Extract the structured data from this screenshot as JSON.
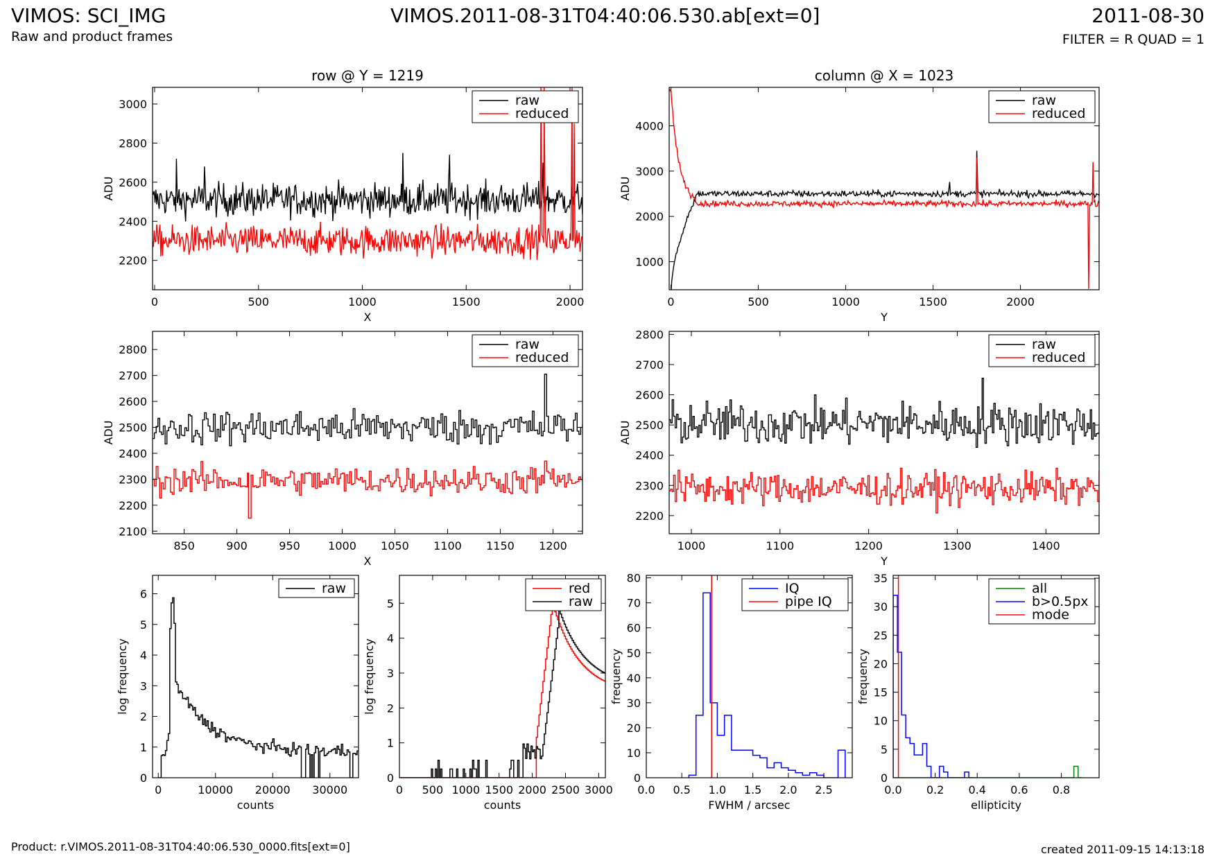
{
  "header": {
    "left_title": "VIMOS: SCI_IMG",
    "left_subtitle": "Raw and product frames",
    "center_title": "VIMOS.2011-08-31T04:40:06.530.ab[ext=0]",
    "right_title": "2011-08-30",
    "right_subtitle": "FILTER = R QUAD = 1"
  },
  "footer": {
    "product": "Product: r.VIMOS.2011-08-31T04:40:06.530_0000.fits[ext=0]",
    "created": "created 2011-09-15 14:13:18"
  },
  "colors": {
    "raw": "#000000",
    "reduced": "#ff0000",
    "iq": "#0000ff",
    "all": "#008000"
  },
  "chart_data": [
    {
      "id": "row-full",
      "type": "line",
      "title": "row @ Y = 1219",
      "xlabel": "X",
      "ylabel": "ADU",
      "xlim": [
        -10,
        2060
      ],
      "ylim": [
        2050,
        3085
      ],
      "xticks": [
        0,
        500,
        1000,
        1500,
        2000
      ],
      "yticks": [
        2200,
        2400,
        2600,
        2800,
        3000
      ],
      "legend": [
        "raw",
        "reduced"
      ],
      "legend_loc": "top-right",
      "series": [
        {
          "name": "raw",
          "color": "#000000",
          "level": 2510,
          "noise": 70,
          "n": 520,
          "spikes": [
            [
              105,
              2720
            ],
            [
              240,
              2680
            ],
            [
              1195,
              2750
            ],
            [
              1420,
              2740
            ],
            [
              1870,
              2700
            ]
          ]
        },
        {
          "name": "reduced",
          "color": "#ff0000",
          "level": 2300,
          "noise": 65,
          "n": 520,
          "spikes": [
            [
              1860,
              3085
            ],
            [
              1875,
              3085
            ],
            [
              2010,
              3085
            ],
            [
              2020,
              2900
            ]
          ]
        }
      ]
    },
    {
      "id": "col-full",
      "type": "line",
      "title": "column @ X = 1023",
      "xlabel": "Y",
      "ylabel": "ADU",
      "xlim": [
        -10,
        2450
      ],
      "ylim": [
        380,
        4850
      ],
      "xticks": [
        0,
        500,
        1000,
        1500,
        2000
      ],
      "yticks": [
        1000,
        2000,
        3000,
        4000
      ],
      "legend": [
        "raw",
        "reduced"
      ],
      "legend_loc": "top-right",
      "series": [
        {
          "name": "raw",
          "color": "#000000",
          "level": 2500,
          "noise": 60,
          "n": 500,
          "startup": "rise",
          "spikes": [
            [
              1595,
              2760
            ],
            [
              1750,
              3450
            ]
          ]
        },
        {
          "name": "reduced",
          "color": "#ff0000",
          "level": 2280,
          "noise": 55,
          "n": 500,
          "startup": "decay",
          "spikes": [
            [
              1750,
              3300
            ],
            [
              2390,
              400
            ],
            [
              2415,
              3200
            ]
          ]
        }
      ]
    },
    {
      "id": "row-zoom",
      "type": "line",
      "title": "",
      "xlabel": "X",
      "ylabel": "ADU",
      "xlim": [
        820,
        1228
      ],
      "ylim": [
        2090,
        2870
      ],
      "xticks": [
        850,
        900,
        950,
        1000,
        1050,
        1100,
        1150,
        1200
      ],
      "yticks": [
        2100,
        2200,
        2300,
        2400,
        2500,
        2600,
        2700,
        2800
      ],
      "legend": [
        "raw",
        "reduced"
      ],
      "legend_loc": "top-right",
      "series": [
        {
          "name": "raw",
          "color": "#000000",
          "level": 2500,
          "noise": 55,
          "n": 240,
          "spikes": [
            [
              1192,
              2705
            ]
          ]
        },
        {
          "name": "reduced",
          "color": "#ff0000",
          "level": 2295,
          "noise": 45,
          "n": 240,
          "spikes": [
            [
              911,
              2150
            ],
            [
              1192,
              2370
            ]
          ]
        }
      ]
    },
    {
      "id": "col-zoom",
      "type": "line",
      "title": "",
      "xlabel": "Y",
      "ylabel": "ADU",
      "xlim": [
        975,
        1460
      ],
      "ylim": [
        2140,
        2810
      ],
      "xticks": [
        1000,
        1100,
        1200,
        1300,
        1400
      ],
      "yticks": [
        2200,
        2300,
        2400,
        2500,
        2600,
        2700,
        2800
      ],
      "legend": [
        "raw",
        "reduced"
      ],
      "legend_loc": "top-right",
      "series": [
        {
          "name": "raw",
          "color": "#000000",
          "level": 2505,
          "noise": 60,
          "n": 290,
          "spikes": [
            [
              1328,
              2655
            ]
          ]
        },
        {
          "name": "reduced",
          "color": "#ff0000",
          "level": 2290,
          "noise": 45,
          "n": 290,
          "spikes": []
        }
      ]
    },
    {
      "id": "hist-raw",
      "type": "histogram",
      "title": "",
      "xlabel": "counts",
      "ylabel": "log frequency",
      "xlim": [
        -1000,
        35000
      ],
      "ylim": [
        0,
        6.6
      ],
      "xticks": [
        0,
        10000,
        20000,
        30000
      ],
      "yticks": [
        0,
        1,
        2,
        3,
        4,
        5,
        6
      ],
      "legend": [
        "raw"
      ],
      "legend_loc": "top-right",
      "series": [
        {
          "name": "raw",
          "color": "#000000",
          "shape": "count-hist",
          "peak": [
            2400,
            6.2
          ]
        }
      ]
    },
    {
      "id": "hist-zoom",
      "type": "histogram",
      "title": "",
      "xlabel": "counts",
      "ylabel": "log frequency",
      "xlim": [
        0,
        3100
      ],
      "ylim": [
        0,
        5.8
      ],
      "xticks": [
        0,
        500,
        1000,
        1500,
        2000,
        2500,
        3000
      ],
      "yticks": [
        0,
        1,
        2,
        3,
        4,
        5
      ],
      "legend": [
        "red",
        "raw"
      ],
      "legend_loc": "top-right",
      "series": [
        {
          "name": "red",
          "color": "#ff0000",
          "shape": "peak-red",
          "peak": [
            2300,
            5.0
          ]
        },
        {
          "name": "raw",
          "color": "#000000",
          "shape": "peak-raw",
          "peak": [
            2400,
            4.8
          ]
        }
      ]
    },
    {
      "id": "fwhm",
      "type": "histogram",
      "title": "",
      "xlabel": "FWHM / arcsec",
      "ylabel": "frequency",
      "xlim": [
        0,
        2.9
      ],
      "ylim": [
        0,
        81
      ],
      "xticks": [
        0.0,
        0.5,
        1.0,
        1.5,
        2.0,
        2.5
      ],
      "yticks": [
        0,
        10,
        20,
        30,
        40,
        50,
        60,
        70,
        80
      ],
      "legend": [
        "IQ",
        "pipe IQ"
      ],
      "legend_loc": "top-right",
      "series": [
        {
          "name": "IQ",
          "color": "#0000ff",
          "bin_width": 0.1,
          "x0": 0.6,
          "values": [
            1,
            25,
            74,
            30,
            17,
            25,
            11,
            11,
            11,
            9,
            8,
            4,
            6,
            4,
            3,
            2,
            1,
            2,
            1,
            0,
            0,
            11
          ]
        },
        {
          "name": "pipe IQ",
          "color": "#ff0000",
          "vline": 0.92
        }
      ]
    },
    {
      "id": "ellipticity",
      "type": "histogram",
      "title": "",
      "xlabel": "ellipticity",
      "ylabel": "frequency",
      "xlim": [
        0,
        0.98
      ],
      "ylim": [
        0,
        35.5
      ],
      "xticks": [
        0.0,
        0.2,
        0.4,
        0.6,
        0.8
      ],
      "yticks": [
        0,
        5,
        10,
        15,
        20,
        25,
        30,
        35
      ],
      "legend": [
        "all",
        "b>0.5px",
        "mode"
      ],
      "legend_loc": "top-right",
      "series": [
        {
          "name": "all",
          "color": "#008000",
          "bin_width": 0.02,
          "x0": 0.0,
          "values": [
            0,
            0,
            0,
            0,
            0,
            0,
            0,
            0,
            0,
            0,
            0,
            0,
            0,
            0,
            0,
            0,
            0,
            0,
            0,
            0,
            0,
            0,
            0,
            0,
            0,
            0,
            0,
            0,
            0,
            0,
            0,
            0,
            0,
            0,
            0,
            0,
            0,
            0,
            0,
            0,
            0,
            0,
            0,
            2,
            0
          ]
        },
        {
          "name": "b>0.5px",
          "color": "#0000ff",
          "bin_width": 0.02,
          "x0": 0.0,
          "values": [
            32,
            22,
            11,
            7,
            6,
            4,
            4,
            6,
            2,
            0,
            0,
            2,
            1,
            0,
            0,
            0,
            0,
            1,
            0
          ]
        },
        {
          "name": "mode",
          "color": "#ff0000",
          "vline": 0.025
        }
      ]
    }
  ]
}
